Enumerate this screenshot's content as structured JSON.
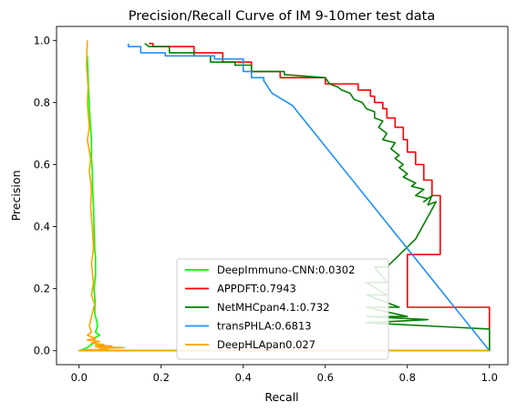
{
  "chart_data": {
    "type": "line",
    "title": "Precision/Recall Curve of IM 9-10mer test data",
    "xlabel": "Recall",
    "ylabel": "Precision",
    "xlim": [
      -0.055,
      1.045
    ],
    "ylim": [
      -0.045,
      1.045
    ],
    "xticks": [
      "0.0",
      "0.2",
      "0.4",
      "0.6",
      "0.8",
      "1.0"
    ],
    "yticks": [
      "0.0",
      "0.2",
      "0.4",
      "0.6",
      "0.8",
      "1.0"
    ],
    "grid": false,
    "legend_position": "lower-center",
    "series": [
      {
        "name": "DeepImmuno-CNN:0.0302",
        "color": "#00ff00",
        "x": [
          0.02,
          0.022,
          0.025,
          0.028,
          0.03,
          0.03,
          0.032,
          0.033,
          0.035,
          0.036,
          0.037,
          0.038,
          0.04,
          0.04,
          0.036,
          0.039,
          0.038,
          0.042,
          0.045,
          0.04,
          0.05,
          0.035,
          0.04,
          0.03,
          0.02,
          0.0,
          1.0
        ],
        "y": [
          0.95,
          0.88,
          0.78,
          0.72,
          0.68,
          0.62,
          0.58,
          0.52,
          0.47,
          0.42,
          0.37,
          0.33,
          0.3,
          0.24,
          0.2,
          0.16,
          0.12,
          0.1,
          0.08,
          0.06,
          0.05,
          0.04,
          0.03,
          0.02,
          0.01,
          0.0,
          0.0
        ]
      },
      {
        "name": "APPDFT:0.7943",
        "color": "#ff0000",
        "x": [
          0.17,
          0.18,
          0.18,
          0.28,
          0.28,
          0.35,
          0.35,
          0.42,
          0.42,
          0.49,
          0.49,
          0.6,
          0.6,
          0.68,
          0.68,
          0.71,
          0.71,
          0.72,
          0.72,
          0.74,
          0.74,
          0.75,
          0.75,
          0.77,
          0.77,
          0.79,
          0.79,
          0.8,
          0.8,
          0.82,
          0.82,
          0.84,
          0.84,
          0.86,
          0.86,
          0.88,
          0.88,
          0.8,
          0.8,
          1.0,
          1.0,
          0.0
        ],
        "y": [
          0.99,
          0.99,
          0.98,
          0.98,
          0.96,
          0.96,
          0.93,
          0.93,
          0.9,
          0.9,
          0.88,
          0.88,
          0.86,
          0.86,
          0.84,
          0.84,
          0.82,
          0.82,
          0.8,
          0.8,
          0.78,
          0.78,
          0.75,
          0.75,
          0.72,
          0.72,
          0.68,
          0.68,
          0.64,
          0.64,
          0.6,
          0.6,
          0.55,
          0.55,
          0.5,
          0.5,
          0.31,
          0.31,
          0.14,
          0.14,
          0.0,
          0.0
        ]
      },
      {
        "name": "NetMHCpan4.1:0.732",
        "color": "#008000",
        "x": [
          0.16,
          0.17,
          0.22,
          0.22,
          0.28,
          0.28,
          0.32,
          0.32,
          0.38,
          0.38,
          0.42,
          0.42,
          0.5,
          0.5,
          0.6,
          0.61,
          0.63,
          0.64,
          0.66,
          0.67,
          0.69,
          0.7,
          0.72,
          0.72,
          0.74,
          0.73,
          0.75,
          0.74,
          0.77,
          0.76,
          0.78,
          0.77,
          0.79,
          0.78,
          0.8,
          0.79,
          0.82,
          0.81,
          0.84,
          0.82,
          0.85,
          0.84,
          0.86,
          0.85,
          0.87,
          0.82,
          0.75,
          0.72,
          0.75,
          0.7,
          0.75,
          0.7,
          0.78,
          0.7,
          0.8,
          0.7,
          0.85,
          0.7,
          1.0,
          1.0,
          0.0
        ],
        "y": [
          0.99,
          0.98,
          0.98,
          0.96,
          0.96,
          0.95,
          0.95,
          0.93,
          0.93,
          0.92,
          0.92,
          0.9,
          0.9,
          0.89,
          0.88,
          0.86,
          0.85,
          0.84,
          0.83,
          0.81,
          0.8,
          0.78,
          0.77,
          0.75,
          0.74,
          0.72,
          0.7,
          0.68,
          0.67,
          0.65,
          0.63,
          0.62,
          0.6,
          0.59,
          0.57,
          0.56,
          0.54,
          0.53,
          0.52,
          0.5,
          0.49,
          0.48,
          0.5,
          0.47,
          0.48,
          0.36,
          0.27,
          0.27,
          0.22,
          0.22,
          0.18,
          0.18,
          0.14,
          0.14,
          0.11,
          0.11,
          0.1,
          0.09,
          0.07,
          0.0,
          0.0
        ]
      },
      {
        "name": "transPHLA:0.6813",
        "color": "#1e90ff",
        "x": [
          0.12,
          0.12,
          0.15,
          0.15,
          0.21,
          0.21,
          0.33,
          0.33,
          0.4,
          0.4,
          0.42,
          0.42,
          0.45,
          0.45,
          0.46,
          0.47,
          0.52,
          1.0
        ],
        "y": [
          0.99,
          0.98,
          0.98,
          0.96,
          0.96,
          0.95,
          0.95,
          0.94,
          0.94,
          0.9,
          0.9,
          0.88,
          0.88,
          0.87,
          0.85,
          0.83,
          0.79,
          0.0
        ]
      },
      {
        "name": "DeepHLApan0.027",
        "color": "#ffa500",
        "x": [
          0.02,
          0.018,
          0.022,
          0.02,
          0.025,
          0.02,
          0.028,
          0.025,
          0.03,
          0.028,
          0.032,
          0.035,
          0.03,
          0.035,
          0.03,
          0.038,
          0.03,
          0.025,
          0.03,
          0.02,
          0.04,
          0.02,
          0.05,
          0.03,
          0.06,
          0.04,
          0.08,
          0.04,
          0.11,
          0.05,
          0.07,
          0.02,
          0.0,
          1.0
        ],
        "y": [
          1.0,
          0.92,
          0.85,
          0.8,
          0.72,
          0.68,
          0.62,
          0.58,
          0.52,
          0.46,
          0.4,
          0.33,
          0.28,
          0.22,
          0.18,
          0.15,
          0.11,
          0.08,
          0.06,
          0.05,
          0.04,
          0.035,
          0.03,
          0.025,
          0.02,
          0.018,
          0.015,
          0.012,
          0.01,
          0.008,
          0.005,
          0.003,
          0.0,
          0.0
        ]
      }
    ]
  }
}
